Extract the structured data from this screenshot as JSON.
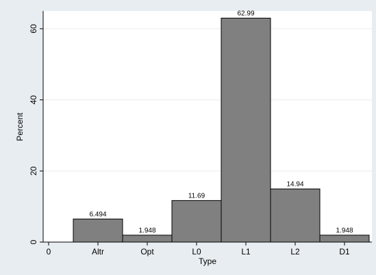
{
  "chart_data": {
    "type": "bar",
    "xlabel": "Type",
    "ylabel": "Percent",
    "ylim": [
      0,
      65
    ],
    "yticks": [
      0,
      20,
      40,
      60
    ],
    "grid": true,
    "x_zero_label": "0",
    "categories": [
      "Altr",
      "Opt",
      "L0",
      "L1",
      "L2",
      "D1"
    ],
    "values": [
      6.494,
      1.948,
      11.69,
      62.99,
      14.94,
      1.948
    ],
    "value_labels": [
      "6.494",
      "1.948",
      "11.69",
      "62.99",
      "14.94",
      "1.948"
    ],
    "colors": {
      "bar_fill": "#808080",
      "bar_stroke": "#000000",
      "plot_background": "#ffffff",
      "outer_background": "#e8edf1",
      "grid": "#e8ecef"
    }
  }
}
